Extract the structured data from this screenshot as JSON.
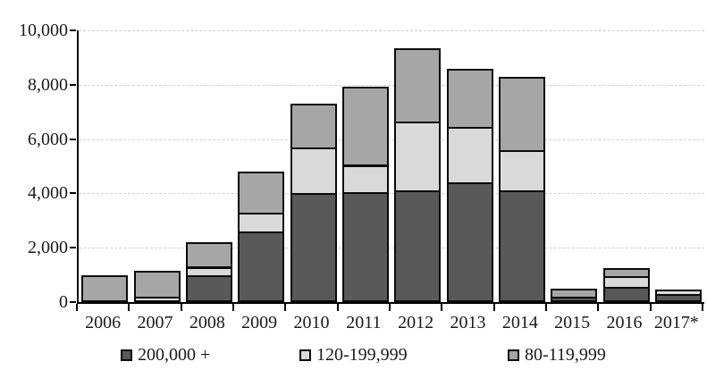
{
  "chart_data": {
    "type": "bar",
    "stacked": true,
    "title": "",
    "xlabel": "",
    "ylabel": "",
    "categories": [
      "2006",
      "2007",
      "2008",
      "2009",
      "2010",
      "2011",
      "2012",
      "2013",
      "2014",
      "2015",
      "2016",
      "2017*"
    ],
    "series": [
      {
        "name": "200,000 +",
        "color": "#595959",
        "values": [
          0,
          0,
          1000,
          2600,
          4000,
          4050,
          4100,
          4400,
          4100,
          200,
          550,
          300
        ]
      },
      {
        "name": "120-199,999",
        "color": "#d9d9d9",
        "values": [
          0,
          200,
          300,
          700,
          1700,
          1000,
          2550,
          2050,
          1500,
          0,
          400,
          150
        ]
      },
      {
        "name": "80-119,999",
        "color": "#a6a6a6",
        "values": [
          1000,
          950,
          900,
          1500,
          1600,
          2850,
          2700,
          2150,
          2700,
          300,
          300,
          0
        ]
      }
    ],
    "totals": [
      1000,
      1150,
      2200,
      4800,
      7300,
      7900,
      9350,
      8600,
      8300,
      500,
      1250,
      450
    ],
    "ylim": [
      0,
      10000
    ],
    "yticks": [
      {
        "value": 0,
        "label": "0"
      },
      {
        "value": 2000,
        "label": "2,000"
      },
      {
        "value": 4000,
        "label": "4,000"
      },
      {
        "value": 6000,
        "label": "6,000"
      },
      {
        "value": 8000,
        "label": "8,000"
      },
      {
        "value": 10000,
        "label": "10,000"
      }
    ],
    "grid": "horizontal-dashed",
    "gridline_color": "#cfcfcf",
    "bar_border_color": "#0a0a0a",
    "axis_color": "#000000",
    "background": "#ffffff",
    "legend_position": "bottom"
  }
}
